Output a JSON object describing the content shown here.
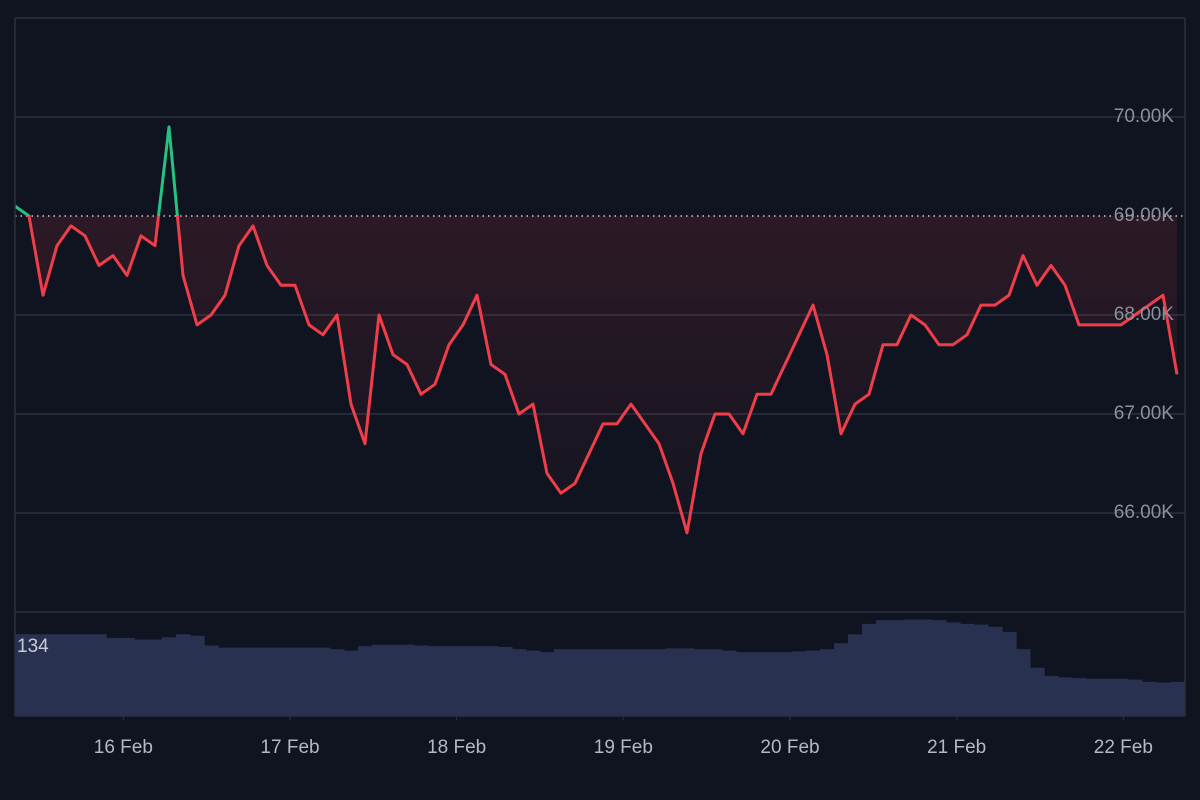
{
  "chart_data": {
    "type": "baseline-line",
    "baseline": 69000,
    "up_color": "#26c281",
    "down_color": "#ef3e4a",
    "volume_color": "#28314f",
    "volume_label": "134",
    "xlim": [
      15.35,
      22.37
    ],
    "ylim": [
      65000,
      71000
    ],
    "volume_ylim": [
      0,
      140
    ],
    "grid": true,
    "yticks": [
      {
        "value": 66000,
        "label": "66.00K"
      },
      {
        "value": 67000,
        "label": "67.00K"
      },
      {
        "value": 68000,
        "label": "68.00K"
      },
      {
        "value": 69000,
        "label": "69.00K"
      },
      {
        "value": 70000,
        "label": "70.00K"
      }
    ],
    "xticks": [
      {
        "value": 16,
        "label": "16 Feb"
      },
      {
        "value": 17,
        "label": "17 Feb"
      },
      {
        "value": 18,
        "label": "18 Feb"
      },
      {
        "value": 19,
        "label": "19 Feb"
      },
      {
        "value": 20,
        "label": "20 Feb"
      },
      {
        "value": 21,
        "label": "21 Feb"
      },
      {
        "value": 22,
        "label": "22 Feb"
      }
    ],
    "x": [
      15.35,
      15.434,
      15.518,
      15.602,
      15.686,
      15.77,
      15.854,
      15.938,
      16.022,
      16.106,
      16.19,
      16.274,
      16.358,
      16.442,
      16.526,
      16.61,
      16.694,
      16.778,
      16.862,
      16.946,
      17.03,
      17.114,
      17.198,
      17.282,
      17.366,
      17.45,
      17.534,
      17.618,
      17.702,
      17.786,
      17.87,
      17.954,
      18.038,
      18.122,
      18.206,
      18.29,
      18.374,
      18.458,
      18.542,
      18.626,
      18.71,
      18.794,
      18.878,
      18.962,
      19.046,
      19.13,
      19.214,
      19.298,
      19.382,
      19.466,
      19.55,
      19.634,
      19.718,
      19.802,
      19.886,
      19.97,
      20.054,
      20.138,
      20.222,
      20.306,
      20.39,
      20.474,
      20.558,
      20.642,
      20.726,
      20.81,
      20.894,
      20.978,
      21.062,
      21.146,
      21.23,
      21.314,
      21.398,
      21.482,
      21.566,
      21.65,
      21.734,
      21.818,
      21.902,
      21.986,
      22.07,
      22.154,
      22.238,
      22.322
    ],
    "series": [
      {
        "name": "price",
        "values": [
          69100,
          69000,
          68200,
          68700,
          68900,
          68800,
          68500,
          68600,
          68400,
          68800,
          68700,
          69900,
          68400,
          67900,
          68000,
          68200,
          68700,
          68900,
          68500,
          68300,
          68300,
          67900,
          67800,
          68000,
          67100,
          66700,
          68000,
          67600,
          67500,
          67200,
          67300,
          67700,
          67900,
          68200,
          67500,
          67400,
          67000,
          67100,
          66400,
          66200,
          66300,
          66600,
          66900,
          66900,
          67100,
          66900,
          66700,
          66300,
          65800,
          66600,
          67000,
          67000,
          66800,
          67200,
          67200,
          67500,
          67800,
          68100,
          67600,
          66800,
          67100,
          67200,
          67700,
          67700,
          68000,
          67900,
          67700,
          67700,
          67800,
          68100,
          68100,
          68200,
          68600,
          68300,
          68500,
          68300,
          67900,
          67900,
          67900,
          67900,
          68000,
          68100,
          68200,
          67400
        ]
      },
      {
        "name": "volume",
        "values": [
          110,
          110,
          110,
          110,
          110,
          110,
          110,
          105,
          105,
          103,
          103,
          106,
          110,
          108,
          95,
          92,
          92,
          92,
          92,
          92,
          92,
          92,
          92,
          90,
          88,
          94,
          96,
          96,
          96,
          95,
          94,
          94,
          94,
          94,
          94,
          93,
          90,
          88,
          86,
          90,
          90,
          90,
          90,
          90,
          90,
          90,
          90,
          91,
          91,
          90,
          90,
          88,
          86,
          86,
          86,
          86,
          87,
          88,
          90,
          98,
          110,
          124,
          129,
          129,
          130,
          130,
          129,
          126,
          124,
          123,
          120,
          113,
          90,
          65,
          54,
          52,
          51,
          50,
          50,
          50,
          49,
          46,
          45,
          46
        ]
      }
    ]
  }
}
